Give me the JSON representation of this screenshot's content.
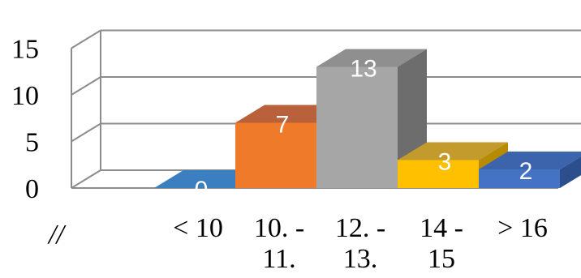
{
  "chart_data": {
    "type": "bar",
    "three_d": true,
    "grid": true,
    "legend": "none",
    "ylim": [
      0,
      15
    ],
    "yticks": [
      "0",
      "5",
      "10",
      "15"
    ],
    "axis_break_mark": "//",
    "categories": [
      [
        "< 10"
      ],
      [
        "10. -",
        "11."
      ],
      [
        "12. -",
        "13."
      ],
      [
        "14 -",
        "15"
      ],
      [
        "> 16"
      ]
    ],
    "values": [
      0,
      7,
      13,
      3,
      2
    ],
    "data_labels": [
      "0",
      "7",
      "13",
      "3",
      "2"
    ],
    "colors": [
      {
        "front": "#2f6fa8",
        "top": "#3c7fc0",
        "side": "#1f4f7e"
      },
      {
        "front": "#ee7a2a",
        "top": "#b8613a",
        "side": "#b95517"
      },
      {
        "front": "#a6a6a6",
        "top": "#8f8f8f",
        "side": "#6d6d6d"
      },
      {
        "front": "#ffc000",
        "top": "#c39a2c",
        "side": "#b78b00"
      },
      {
        "front": "#4472c4",
        "top": "#3b64ad",
        "side": "#2c4e8c"
      }
    ],
    "gridline_color": "#8c8c8c"
  }
}
